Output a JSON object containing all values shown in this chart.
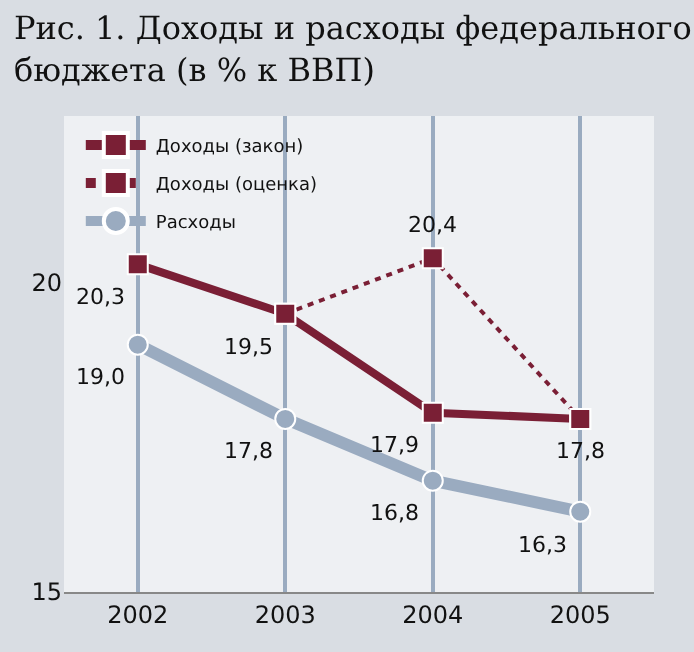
{
  "chart_data": {
    "type": "line",
    "title": "Рис. 1. Доходы и расходы федерального бюджета (в % к ВВП)",
    "categories": [
      "2002",
      "2003",
      "2004",
      "2005"
    ],
    "series": [
      {
        "name": "Доходы (закон)",
        "color": "#7a1f35",
        "values": [
          20.3,
          19.5,
          17.9,
          17.8
        ],
        "value_labels": [
          "20,3",
          "19,5",
          "17,9",
          "17,8"
        ],
        "line_style": "solid",
        "marker": "square"
      },
      {
        "name": "Доходы (оценка)",
        "color": "#7a1f35",
        "values": [
          null,
          19.5,
          20.4,
          17.8
        ],
        "value_labels": [
          null,
          null,
          "20,4",
          null
        ],
        "line_style": "dotted",
        "marker": "square"
      },
      {
        "name": "Расходы",
        "color": "#9aabc0",
        "values": [
          19.0,
          17.8,
          16.8,
          16.3
        ],
        "value_labels": [
          "19,0",
          "17,8",
          "16,8",
          "16,3"
        ],
        "line_style": "solid",
        "marker": "circle"
      }
    ],
    "ylim": [
      15,
      22.7
    ],
    "yticks": [
      15,
      20
    ],
    "grid": "x",
    "legend": "top left"
  }
}
